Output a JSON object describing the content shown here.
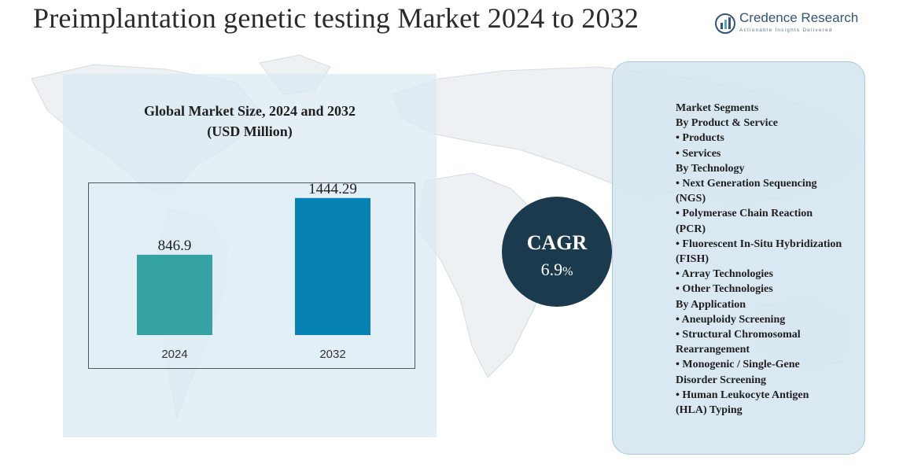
{
  "page": {
    "title": "Preimplantation genetic testing Market 2024 to 2032"
  },
  "brand": {
    "name": "Credence Research",
    "tagline": "Actionable Insights Delivered"
  },
  "chart_data": {
    "type": "bar",
    "title": "Global Market Size, 2024 and 2032",
    "subtitle": "(USD Million)",
    "categories": [
      "2024",
      "2032"
    ],
    "values": [
      846.9,
      1444.29
    ],
    "value_labels": [
      "846.9",
      "1444.29"
    ],
    "bar_colors": [
      "#35a3a3",
      "#0681b3"
    ],
    "ylim": [
      0,
      1600
    ],
    "grid": false,
    "xlabel": "",
    "ylabel": ""
  },
  "cagr": {
    "label": "CAGR",
    "value": "6.9",
    "unit": "%",
    "colors": {
      "circle": "#1b3a4d",
      "ring": "#6f7f8a"
    }
  },
  "segments": {
    "lines": [
      {
        "text": "Market Segments",
        "bullet": false
      },
      {
        "text": "By Product & Service",
        "bullet": false
      },
      {
        "text": "Products",
        "bullet": true
      },
      {
        "text": "Services",
        "bullet": true
      },
      {
        "text": "By Technology",
        "bullet": false
      },
      {
        "text": "Next Generation Sequencing",
        "bullet": true
      },
      {
        "text": "(NGS)",
        "bullet": false
      },
      {
        "text": "Polymerase Chain Reaction",
        "bullet": true
      },
      {
        "text": "(PCR)",
        "bullet": false
      },
      {
        "text": "Fluorescent In-Situ Hybridization",
        "bullet": true
      },
      {
        "text": "(FISH)",
        "bullet": false
      },
      {
        "text": "Array Technologies",
        "bullet": true
      },
      {
        "text": "Other Technologies",
        "bullet": true
      },
      {
        "text": "By Application",
        "bullet": false
      },
      {
        "text": "Aneuploidy Screening",
        "bullet": true
      },
      {
        "text": "Structural Chromosomal",
        "bullet": true
      },
      {
        "text": "Rearrangement",
        "bullet": false
      },
      {
        "text": "Monogenic / Single-Gene",
        "bullet": true
      },
      {
        "text": "Disorder Screening",
        "bullet": false
      },
      {
        "text": "Human Leukocyte Antigen",
        "bullet": true
      },
      {
        "text": "(HLA) Typing",
        "bullet": false
      }
    ]
  }
}
